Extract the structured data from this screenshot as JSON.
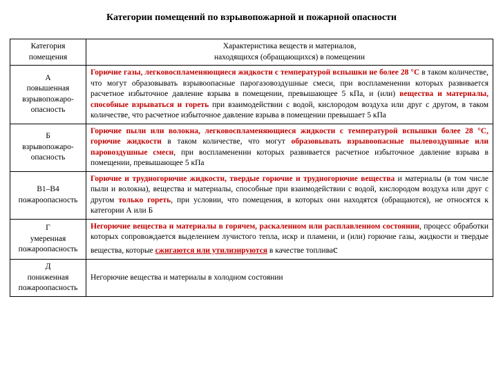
{
  "title": "Категории помещений по взрывопожарной и пожарной опасности",
  "header": {
    "col1": "Категория помещения",
    "col2_line1": "Характеристика веществ и материалов,",
    "col2_line2": "находящихся (обращающихся) в помещении"
  },
  "rows": {
    "a": {
      "cat_l1": "А",
      "cat_l2": "повышенная",
      "cat_l3": "взрывопожаро-",
      "cat_l4": "опасность",
      "s1": "Горючие газы, легковоспламеняющиеся жидкости с температурой вспышки не более 28 °С",
      "s2": " в таком количестве, что могут образовывать взрывоопасные парогазовоздушные смеси, при воспламенении которых развивается расчетное избыточное давление взрыва в помещении, превышающее 5 кПа, и (или) ",
      "s3": "вещества и материалы, способные взрываться и гореть",
      "s4": " при взаимодействии с водой, кислородом воздуха или друг с другом, в таком количестве, что расчетное избыточное давление взрыва в помещении превышает 5 кПа"
    },
    "b": {
      "cat_l1": "Б",
      "cat_l2": "взрывопожаро-",
      "cat_l3": "опасность",
      "s1": "Горючие пыли или волокна, легковоспламеняющиеся жидкости с температурой вспышки более 28 °С, горючие жидкости",
      "s2": " в таком количестве, что могут ",
      "s3": "образовывать взрывоопасные пылевоздушные или паровоздушные смеси",
      "s4": ", при воспламенении которых развивается расчетное избыточное давление взрыва в помещении, превышающее 5 кПа"
    },
    "v": {
      "cat_l1": "В1–В4",
      "cat_l2": "пожароопасность",
      "s1": "Горючие и трудногорючие жидкости, твердые горючие и трудногорючие вещества",
      "s2": " и материалы (в том числе пыли и волокна), вещества и материалы, способные при взаимодействии с водой, кислородом воздуха или друг с другом ",
      "s3": "только гореть",
      "s4": ", при условии, что помещения, в которых они находятся (обращаются), не относятся к категории А или Б"
    },
    "g": {
      "cat_l1": "Г",
      "cat_l2": "умеренная",
      "cat_l3": "пожароопасность",
      "s1": "Негорючие вещества и материалы в горячем, раскаленном или расплавленном состоянии",
      "s2": ", процесс обработки которых сопровождается выделением лучистого тепла, искр и пламени, и (или) горючие газы, жидкости и твердые вещества, которые ",
      "s3": "сжигаются или утилизируются",
      "s4": " в качестве топлива",
      "tail": "с"
    },
    "d": {
      "cat_l1": "Д",
      "cat_l2": "пониженная",
      "cat_l3": "пожароопасность",
      "s1": "Негорючие вещества и материалы в холодном состоянии"
    }
  }
}
